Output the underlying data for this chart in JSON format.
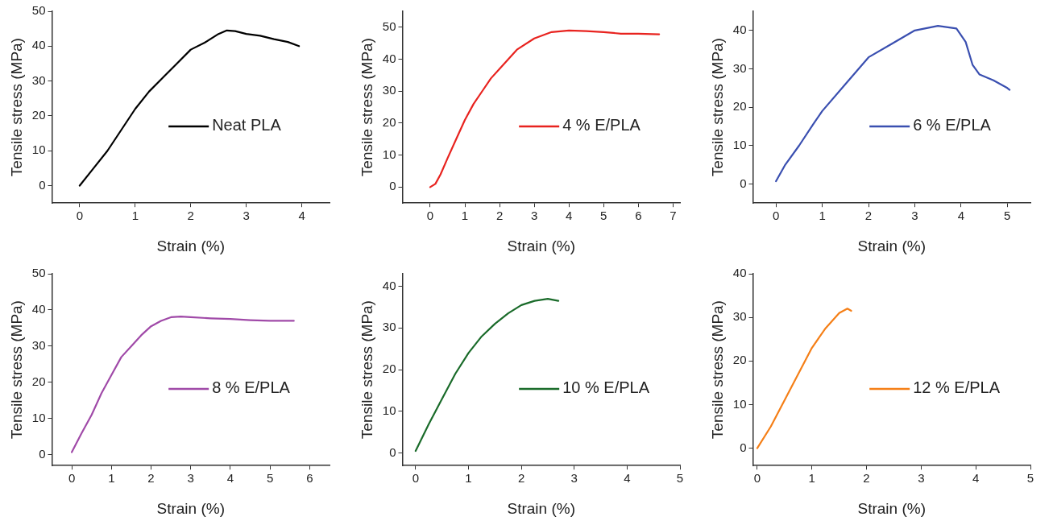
{
  "chart_data": [
    {
      "type": "line",
      "xlabel": "Strain (%)",
      "ylabel": "Tensile stress (MPa)",
      "xlim": [
        -0.5,
        4.5
      ],
      "xticks": [
        0,
        1,
        2,
        3,
        4
      ],
      "ylim": [
        -5,
        50
      ],
      "yticks": [
        0,
        10,
        20,
        30,
        40,
        50
      ],
      "legend": "right",
      "marker": "none",
      "line_style": "solid",
      "x": [
        0,
        0.25,
        0.5,
        0.75,
        1,
        1.25,
        1.5,
        1.75,
        2,
        2.25,
        2.5,
        2.65,
        2.8,
        3,
        3.25,
        3.5,
        3.75,
        3.95
      ],
      "series": [
        {
          "name": "Neat PLA",
          "color": "#000000",
          "values": [
            0,
            5,
            10,
            16,
            22,
            27,
            31,
            35,
            39,
            41,
            43.5,
            44.5,
            44.3,
            43.5,
            43,
            42,
            41.2,
            40
          ]
        }
      ]
    },
    {
      "type": "line",
      "xlabel": "Strain (%)",
      "ylabel": "Tensile stress (MPa)",
      "xlim": [
        -0.8,
        7.2
      ],
      "xticks": [
        0,
        1,
        2,
        3,
        4,
        5,
        6,
        7
      ],
      "ylim": [
        -5,
        55
      ],
      "yticks": [
        0,
        10,
        20,
        30,
        40,
        50
      ],
      "legend": "right",
      "marker": "none",
      "line_style": "solid",
      "x": [
        0,
        0.15,
        0.3,
        0.5,
        0.75,
        1,
        1.25,
        1.5,
        1.75,
        2,
        2.5,
        3,
        3.5,
        4,
        4.5,
        5,
        5.5,
        6,
        6.6
      ],
      "series": [
        {
          "name": "4 % E/PLA",
          "color": "#e8231f",
          "values": [
            0,
            1,
            4,
            9,
            15,
            21,
            26,
            30,
            34,
            37,
            43,
            46.5,
            48.5,
            49,
            48.8,
            48.5,
            48,
            48,
            47.8
          ]
        }
      ]
    },
    {
      "type": "line",
      "xlabel": "Strain (%)",
      "ylabel": "Tensile stress (MPa)",
      "xlim": [
        -0.5,
        5.5
      ],
      "xticks": [
        0,
        1,
        2,
        3,
        4,
        5
      ],
      "ylim": [
        -5,
        45
      ],
      "yticks": [
        0,
        10,
        20,
        30,
        40
      ],
      "legend": "right",
      "marker": "none",
      "line_style": "solid",
      "x": [
        0,
        0.2,
        0.5,
        0.8,
        1,
        1.5,
        2,
        2.5,
        3,
        3.5,
        3.9,
        4.1,
        4.25,
        4.4,
        4.7,
        5,
        5.05
      ],
      "series": [
        {
          "name": "6 % E/PLA",
          "color": "#3a4fb0",
          "values": [
            0.7,
            5,
            10,
            15.5,
            19,
            26,
            33,
            36.5,
            40,
            41.2,
            40.5,
            37,
            31,
            28.5,
            27,
            25,
            24.5
          ]
        }
      ]
    },
    {
      "type": "line",
      "xlabel": "Strain (%)",
      "ylabel": "Tensile stress (MPa)",
      "xlim": [
        -0.5,
        6.5
      ],
      "xticks": [
        0,
        1,
        2,
        3,
        4,
        5,
        6
      ],
      "ylim": [
        -3,
        50
      ],
      "yticks": [
        0,
        10,
        20,
        30,
        40,
        50
      ],
      "legend": "right",
      "marker": "none",
      "line_style": "solid",
      "x": [
        0,
        0.25,
        0.5,
        0.75,
        1,
        1.25,
        1.5,
        1.75,
        2,
        2.25,
        2.5,
        2.75,
        3,
        3.5,
        4,
        4.5,
        5,
        5.6
      ],
      "series": [
        {
          "name": "8 % E/PLA",
          "color": "#a04aa8",
          "values": [
            0.7,
            6,
            11,
            17,
            22,
            27,
            30,
            33,
            35.5,
            37,
            38,
            38.2,
            38,
            37.7,
            37.5,
            37.2,
            37,
            37
          ]
        }
      ]
    },
    {
      "type": "line",
      "xlabel": "Strain (%)",
      "ylabel": "Tensile stress (MPa)",
      "xlim": [
        -0.25,
        5
      ],
      "xticks": [
        0,
        1,
        2,
        3,
        4,
        5
      ],
      "ylim": [
        -3,
        43
      ],
      "yticks": [
        0,
        10,
        20,
        30,
        40
      ],
      "legend": "right",
      "marker": "none",
      "line_style": "solid",
      "x": [
        0,
        0.25,
        0.5,
        0.75,
        1,
        1.25,
        1.5,
        1.75,
        2,
        2.25,
        2.5,
        2.7
      ],
      "series": [
        {
          "name": "10 % E/PLA",
          "color": "#1a6b2a",
          "values": [
            0.5,
            7,
            13,
            19,
            24,
            28,
            31,
            33.5,
            35.5,
            36.5,
            37,
            36.5
          ]
        }
      ]
    },
    {
      "type": "line",
      "xlabel": "Strain (%)",
      "ylabel": "Tensile stress (MPa)",
      "xlim": [
        -0.08,
        5
      ],
      "xticks": [
        0,
        1,
        2,
        3,
        4,
        5
      ],
      "ylim": [
        -4,
        40
      ],
      "yticks": [
        0,
        10,
        20,
        30,
        40
      ],
      "legend": "right",
      "marker": "none",
      "line_style": "solid",
      "x": [
        0,
        0.25,
        0.5,
        0.75,
        1,
        1.25,
        1.5,
        1.65,
        1.72
      ],
      "series": [
        {
          "name": "12 % E/PLA",
          "color": "#f57f17",
          "values": [
            0,
            5,
            11,
            17,
            23,
            27.5,
            31,
            32,
            31.5
          ]
        }
      ]
    }
  ]
}
